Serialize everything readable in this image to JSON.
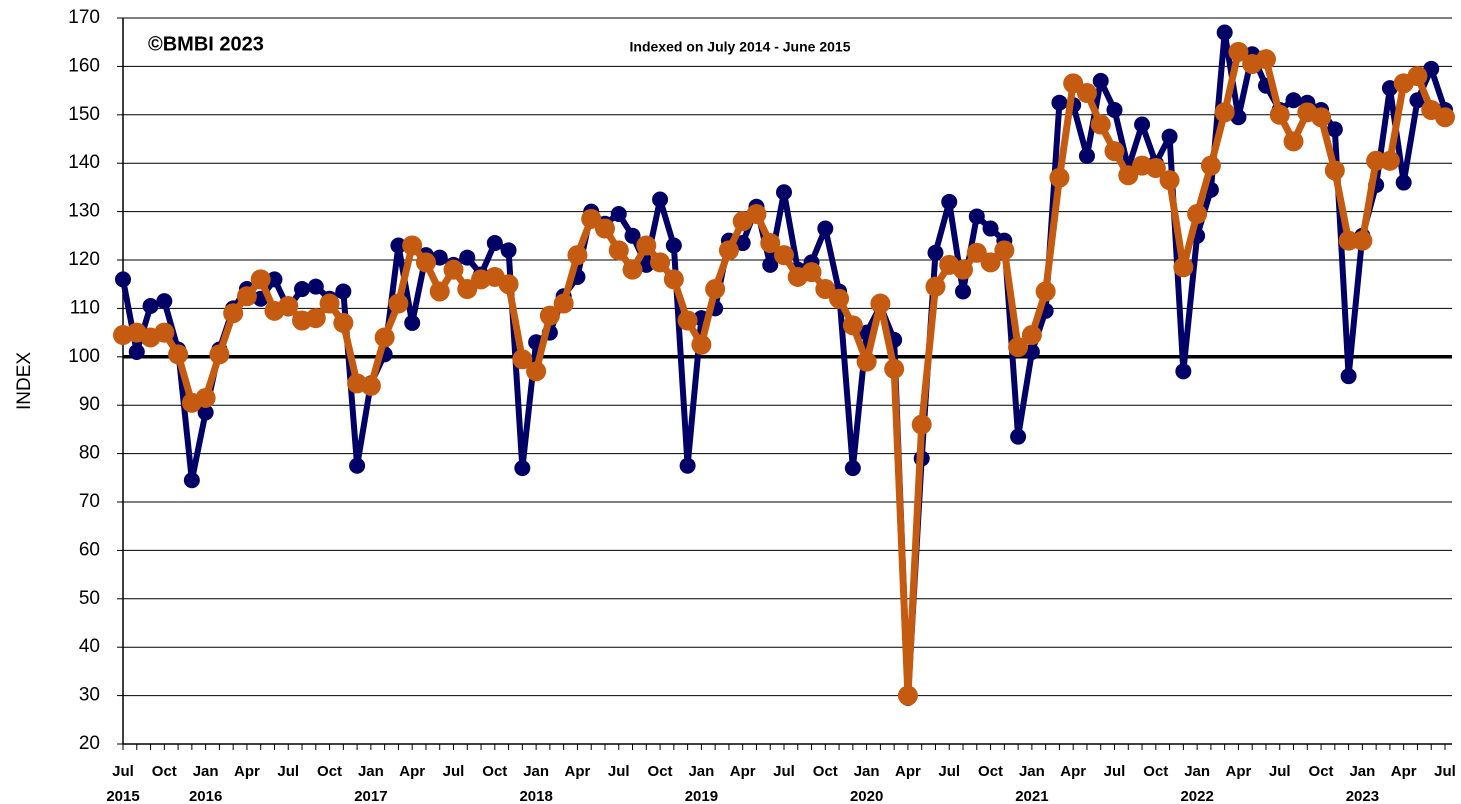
{
  "chart_data": {
    "type": "line",
    "y_label": "INDEX",
    "annotations": [
      "©BMBI 2023",
      "Indexed on July 2014 - June 2015"
    ],
    "categories": [
      "Jul",
      null,
      null,
      "Oct",
      null,
      null,
      "Jan",
      null,
      null,
      "Apr",
      null,
      null,
      "Jul",
      null,
      null,
      "Oct",
      null,
      null,
      "Jan",
      null,
      null,
      "Apr",
      null,
      null,
      "Jul",
      null,
      null,
      "Oct",
      null,
      null,
      "Jan",
      null,
      null,
      "Apr",
      null,
      null,
      "Jul",
      null,
      null,
      "Oct",
      null,
      null,
      "Jan",
      null,
      null,
      "Apr",
      null,
      null,
      "Jul",
      null,
      null,
      "Oct",
      null,
      null,
      "Jan",
      null,
      null,
      "Apr",
      null,
      null,
      "Jul",
      null,
      null,
      "Oct",
      null,
      null,
      "Jan",
      null,
      null,
      "Apr",
      null,
      null,
      "Jul",
      null,
      null,
      "Oct",
      null,
      null,
      "Jan",
      null,
      null,
      "Apr",
      null,
      null,
      "Jul",
      null,
      null,
      "Oct",
      null,
      null,
      "Jan",
      null,
      null,
      "Apr",
      null,
      null,
      "Jul"
    ],
    "years": [
      "2015",
      null,
      null,
      null,
      null,
      null,
      "2016",
      null,
      null,
      null,
      null,
      null,
      null,
      null,
      null,
      null,
      null,
      null,
      "2017",
      null,
      null,
      null,
      null,
      null,
      null,
      null,
      null,
      null,
      null,
      null,
      "2018",
      null,
      null,
      null,
      null,
      null,
      null,
      null,
      null,
      null,
      null,
      null,
      "2019",
      null,
      null,
      null,
      null,
      null,
      null,
      null,
      null,
      null,
      null,
      null,
      "2020",
      null,
      null,
      null,
      null,
      null,
      null,
      null,
      null,
      null,
      null,
      null,
      "2021",
      null,
      null,
      null,
      null,
      null,
      null,
      null,
      null,
      null,
      null,
      null,
      "2022",
      null,
      null,
      null,
      null,
      null,
      null,
      null,
      null,
      null,
      null,
      null,
      "2023",
      null,
      null,
      null,
      null,
      null,
      null
    ],
    "series": [
      {
        "color": "#000066",
        "values": [
          116,
          101,
          110.5,
          111.5,
          101.5,
          74.5,
          88.5,
          101.5,
          110,
          114,
          112,
          116,
          110,
          114,
          114.5,
          112,
          113.5,
          77.5,
          94.5,
          100.5,
          123,
          107,
          121,
          120.5,
          119,
          120.5,
          117,
          123.5,
          122,
          77,
          103,
          105,
          112.5,
          116.5,
          130,
          127.5,
          129.5,
          125,
          119,
          132.5,
          123,
          77.5,
          108,
          110,
          124,
          123.5,
          131,
          119,
          134,
          118,
          119.5,
          126.5,
          113.5,
          77,
          105,
          110.5,
          103.5,
          29.5,
          79,
          121.5,
          132,
          113.5,
          129,
          126.5,
          124,
          83.5,
          101,
          109.5,
          152.5,
          152,
          141.5,
          157,
          151,
          139,
          148,
          140,
          145.5,
          97,
          125,
          134.5,
          167,
          149.5,
          162.5,
          156,
          151,
          153,
          152.5,
          151,
          147,
          96,
          125,
          135.5,
          155.5,
          136,
          153,
          159.5,
          151
        ]
      },
      {
        "color": "#c55a11",
        "values": [
          104.5,
          105,
          104,
          105,
          100.5,
          90.5,
          91.5,
          100.5,
          109,
          112.5,
          116,
          109.5,
          110.5,
          107.5,
          108,
          111,
          107,
          94.5,
          94,
          104,
          111,
          123,
          119.5,
          113.5,
          118,
          114,
          116,
          116.5,
          115,
          99.5,
          97,
          108.5,
          111,
          121,
          128.5,
          126.5,
          122,
          118,
          123,
          119.5,
          116,
          107.5,
          102.5,
          114,
          122,
          128,
          129.5,
          123.5,
          121,
          116.5,
          117.5,
          114,
          112,
          106.5,
          99,
          111,
          97.5,
          30,
          86,
          114.5,
          119,
          118,
          121.5,
          119.5,
          122,
          102,
          104.5,
          113.5,
          137,
          156.5,
          154.5,
          148,
          142.5,
          137.5,
          139.5,
          139,
          136.5,
          118.5,
          129.5,
          139.5,
          150.5,
          163,
          160.5,
          161.5,
          150,
          144.5,
          150.5,
          149.5,
          138.5,
          124,
          124,
          140.5,
          140.5,
          156.5,
          158,
          151,
          149.5
        ]
      }
    ],
    "reference_line": 100,
    "ylim": [
      20,
      170
    ],
    "yticks": [
      20,
      30,
      40,
      50,
      60,
      70,
      80,
      90,
      100,
      110,
      120,
      130,
      140,
      150,
      160,
      170
    ],
    "grid": true
  }
}
